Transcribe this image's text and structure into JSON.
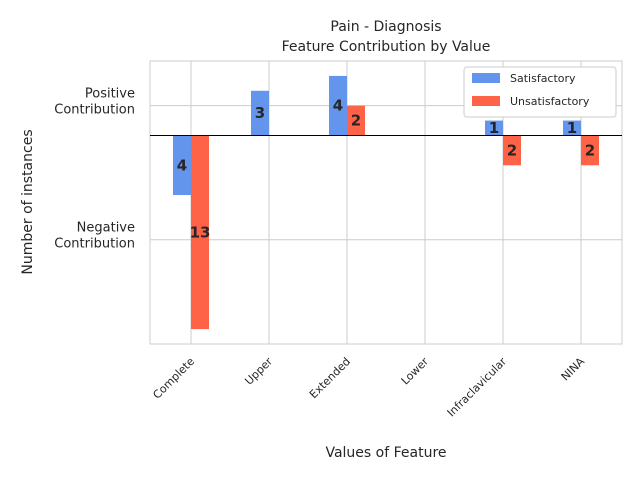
{
  "chart_data": {
    "type": "bar",
    "title": "Pain - Diagnosis",
    "subtitle": "Feature Contribution by Value",
    "xlabel": "Values of Feature",
    "ylabel": "Number of instances",
    "ylim": [
      -14,
      5
    ],
    "categories": [
      "Complete",
      "Upper",
      "Extended",
      "Lower",
      "Infraclavicular",
      "NINA"
    ],
    "y_ticks": [
      {
        "value": 2,
        "label_lines": [
          "Positive",
          "Contribution"
        ]
      },
      {
        "value": -7,
        "label_lines": [
          "Negative",
          "Contribution"
        ]
      }
    ],
    "series": [
      {
        "name": "Satisfactory",
        "color": "#6495ED",
        "values": [
          -4,
          3,
          4,
          0,
          1,
          1
        ],
        "labels": [
          "4",
          "3",
          "4",
          "",
          "1",
          "1"
        ]
      },
      {
        "name": "Unsatisfactory",
        "color": "#FF6347",
        "values": [
          -13,
          0,
          2,
          0,
          -2,
          -2
        ],
        "labels": [
          "13",
          "",
          "2",
          "",
          "2",
          "2"
        ]
      }
    ],
    "grid": true,
    "legend_position": "top-right"
  }
}
